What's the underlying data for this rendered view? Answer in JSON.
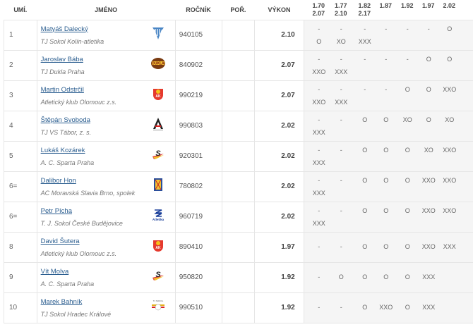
{
  "headers": {
    "rank": "UMÍ.",
    "name": "JMÉNO",
    "year": "ROČNÍK",
    "order": "POŘ.",
    "perf": "VÝKON"
  },
  "heights": [
    [
      "1.70",
      "2.07"
    ],
    [
      "1.77",
      "2.10"
    ],
    [
      "1.82",
      "2.17"
    ],
    [
      "1.87",
      ""
    ],
    [
      "1.92",
      ""
    ],
    [
      "1.97",
      ""
    ],
    [
      "2.02",
      ""
    ]
  ],
  "rows": [
    {
      "rank": "1",
      "name": "Matyáš Dalecký",
      "club": "TJ Sokol Kolín-atletika",
      "logo": "kolin-logo-icon",
      "year": "940105",
      "order": "",
      "perf": "2.10",
      "attempts": [
        "-",
        "-",
        "-",
        "-",
        "-",
        "-",
        "O",
        "O",
        "XO",
        "XXX"
      ]
    },
    {
      "rank": "2",
      "name": "Jaroslav Bába",
      "club": "TJ Dukla Praha",
      "logo": "dukla-logo-icon",
      "year": "840902",
      "order": "",
      "perf": "2.07",
      "attempts": [
        "-",
        "-",
        "-",
        "-",
        "-",
        "O",
        "O",
        "XXO",
        "XXX"
      ]
    },
    {
      "rank": "3",
      "name": "Martin Odstrčil",
      "club": "Atletický klub Olomouc z.s.",
      "logo": "ak-olomouc-logo-icon",
      "year": "990219",
      "order": "",
      "perf": "2.07",
      "attempts": [
        "-",
        "-",
        "-",
        "-",
        "O",
        "O",
        "XXO",
        "XXO",
        "XXX"
      ]
    },
    {
      "rank": "4",
      "name": "Štěpán Svoboda",
      "club": "TJ VS Tábor, z. s.",
      "logo": "tabor-logo-icon",
      "year": "990803",
      "order": "",
      "perf": "2.02",
      "attempts": [
        "-",
        "-",
        "O",
        "O",
        "XO",
        "O",
        "XO",
        "XXX"
      ]
    },
    {
      "rank": "5",
      "name": "Lukáš Kozárek",
      "club": "A. C. Sparta Praha",
      "logo": "sparta-logo-icon",
      "year": "920301",
      "order": "",
      "perf": "2.02",
      "attempts": [
        "-",
        "-",
        "O",
        "O",
        "O",
        "XO",
        "XXO",
        "XXX"
      ]
    },
    {
      "rank": "6=",
      "name": "Dalibor Hon",
      "club": "AC Moravská Slavia Brno, spolek",
      "logo": "slavia-brno-logo-icon",
      "year": "780802",
      "order": "",
      "perf": "2.02",
      "attempts": [
        "-",
        "-",
        "O",
        "O",
        "O",
        "XXO",
        "XXO",
        "XXX"
      ]
    },
    {
      "rank": "6=",
      "name": "Petr Pícha",
      "club": "T. J. Sokol České Budějovice",
      "logo": "budejovice-logo-icon",
      "year": "960719",
      "order": "",
      "perf": "2.02",
      "attempts": [
        "-",
        "-",
        "O",
        "O",
        "O",
        "XXO",
        "XXO",
        "XXX"
      ]
    },
    {
      "rank": "8",
      "name": "David Šutera",
      "club": "Atletický klub Olomouc z.s.",
      "logo": "ak-olomouc-logo-icon",
      "year": "890410",
      "order": "",
      "perf": "1.97",
      "attempts": [
        "-",
        "-",
        "O",
        "O",
        "O",
        "XXO",
        "XXX"
      ]
    },
    {
      "rank": "9",
      "name": "Vít Molva",
      "club": "A. C. Sparta Praha",
      "logo": "sparta-logo-icon",
      "year": "950820",
      "order": "",
      "perf": "1.92",
      "attempts": [
        "-",
        "O",
        "O",
        "O",
        "O",
        "XXX"
      ]
    },
    {
      "rank": "10",
      "name": "Marek Bahník",
      "club": "TJ Sokol Hradec Králové",
      "logo": "hradec-logo-icon",
      "year": "990510",
      "order": "",
      "perf": "1.92",
      "attempts": [
        "-",
        "-",
        "O",
        "XXO",
        "O",
        "XXX"
      ]
    }
  ],
  "colors": {
    "link": "#2a5d8f",
    "attempts_bg": "#f5f5f5"
  }
}
